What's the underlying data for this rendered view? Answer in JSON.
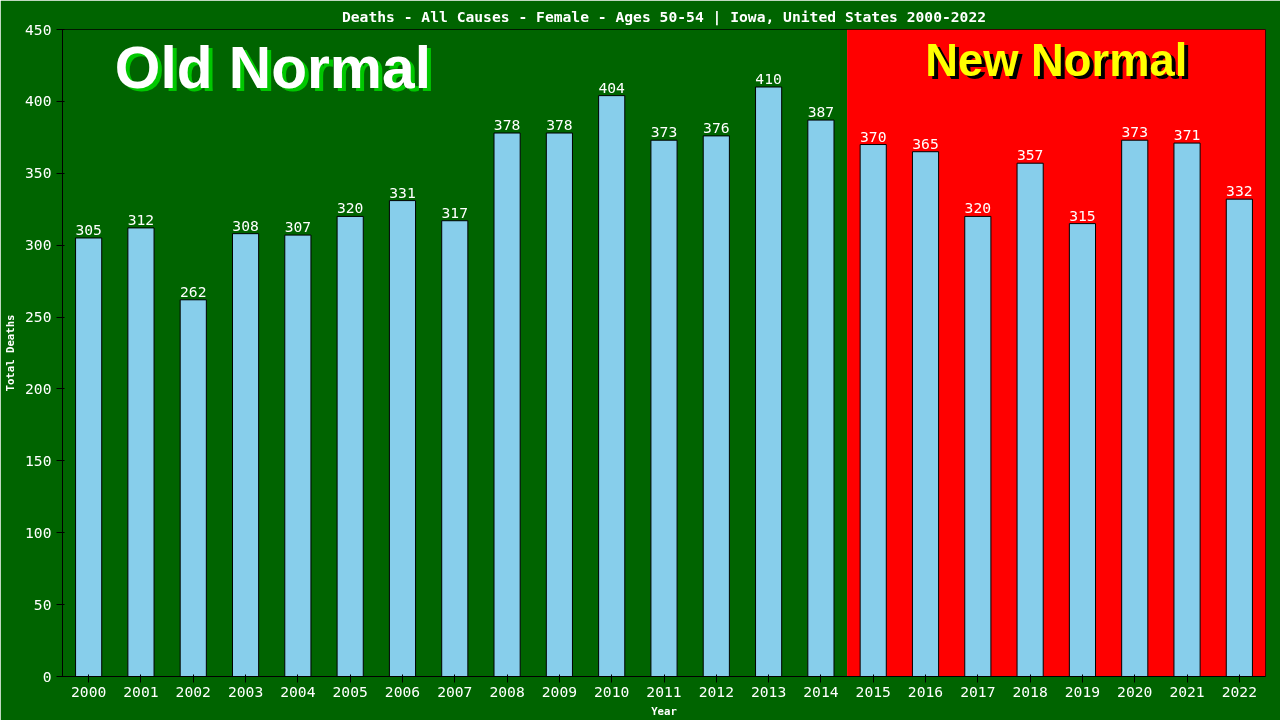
{
  "chart_data": {
    "type": "bar",
    "title": "Deaths - All Causes - Female - Ages 50-54 | Iowa, United States 2000-2022",
    "xlabel": "Year",
    "ylabel": "Total Deaths",
    "categories": [
      "2000",
      "2001",
      "2002",
      "2003",
      "2004",
      "2005",
      "2006",
      "2007",
      "2008",
      "2009",
      "2010",
      "2011",
      "2012",
      "2013",
      "2014",
      "2015",
      "2016",
      "2017",
      "2018",
      "2019",
      "2020",
      "2021",
      "2022"
    ],
    "values": [
      305,
      312,
      262,
      308,
      307,
      320,
      331,
      317,
      378,
      378,
      404,
      373,
      376,
      410,
      387,
      370,
      365,
      320,
      357,
      315,
      373,
      371,
      332
    ],
    "color": "#87ceeb",
    "ylim": [
      0,
      450
    ],
    "yticks": [
      0,
      50,
      100,
      150,
      200,
      250,
      300,
      350,
      400,
      450
    ],
    "grid": false,
    "data_labels": true,
    "bands": [
      {
        "axis": "x",
        "from": "2000",
        "to": "2014",
        "label": "Old Normal",
        "color": "#006400"
      },
      {
        "axis": "x",
        "from": "2015",
        "to": "2022",
        "label": "New Normal",
        "color": "#ff0000"
      }
    ]
  }
}
